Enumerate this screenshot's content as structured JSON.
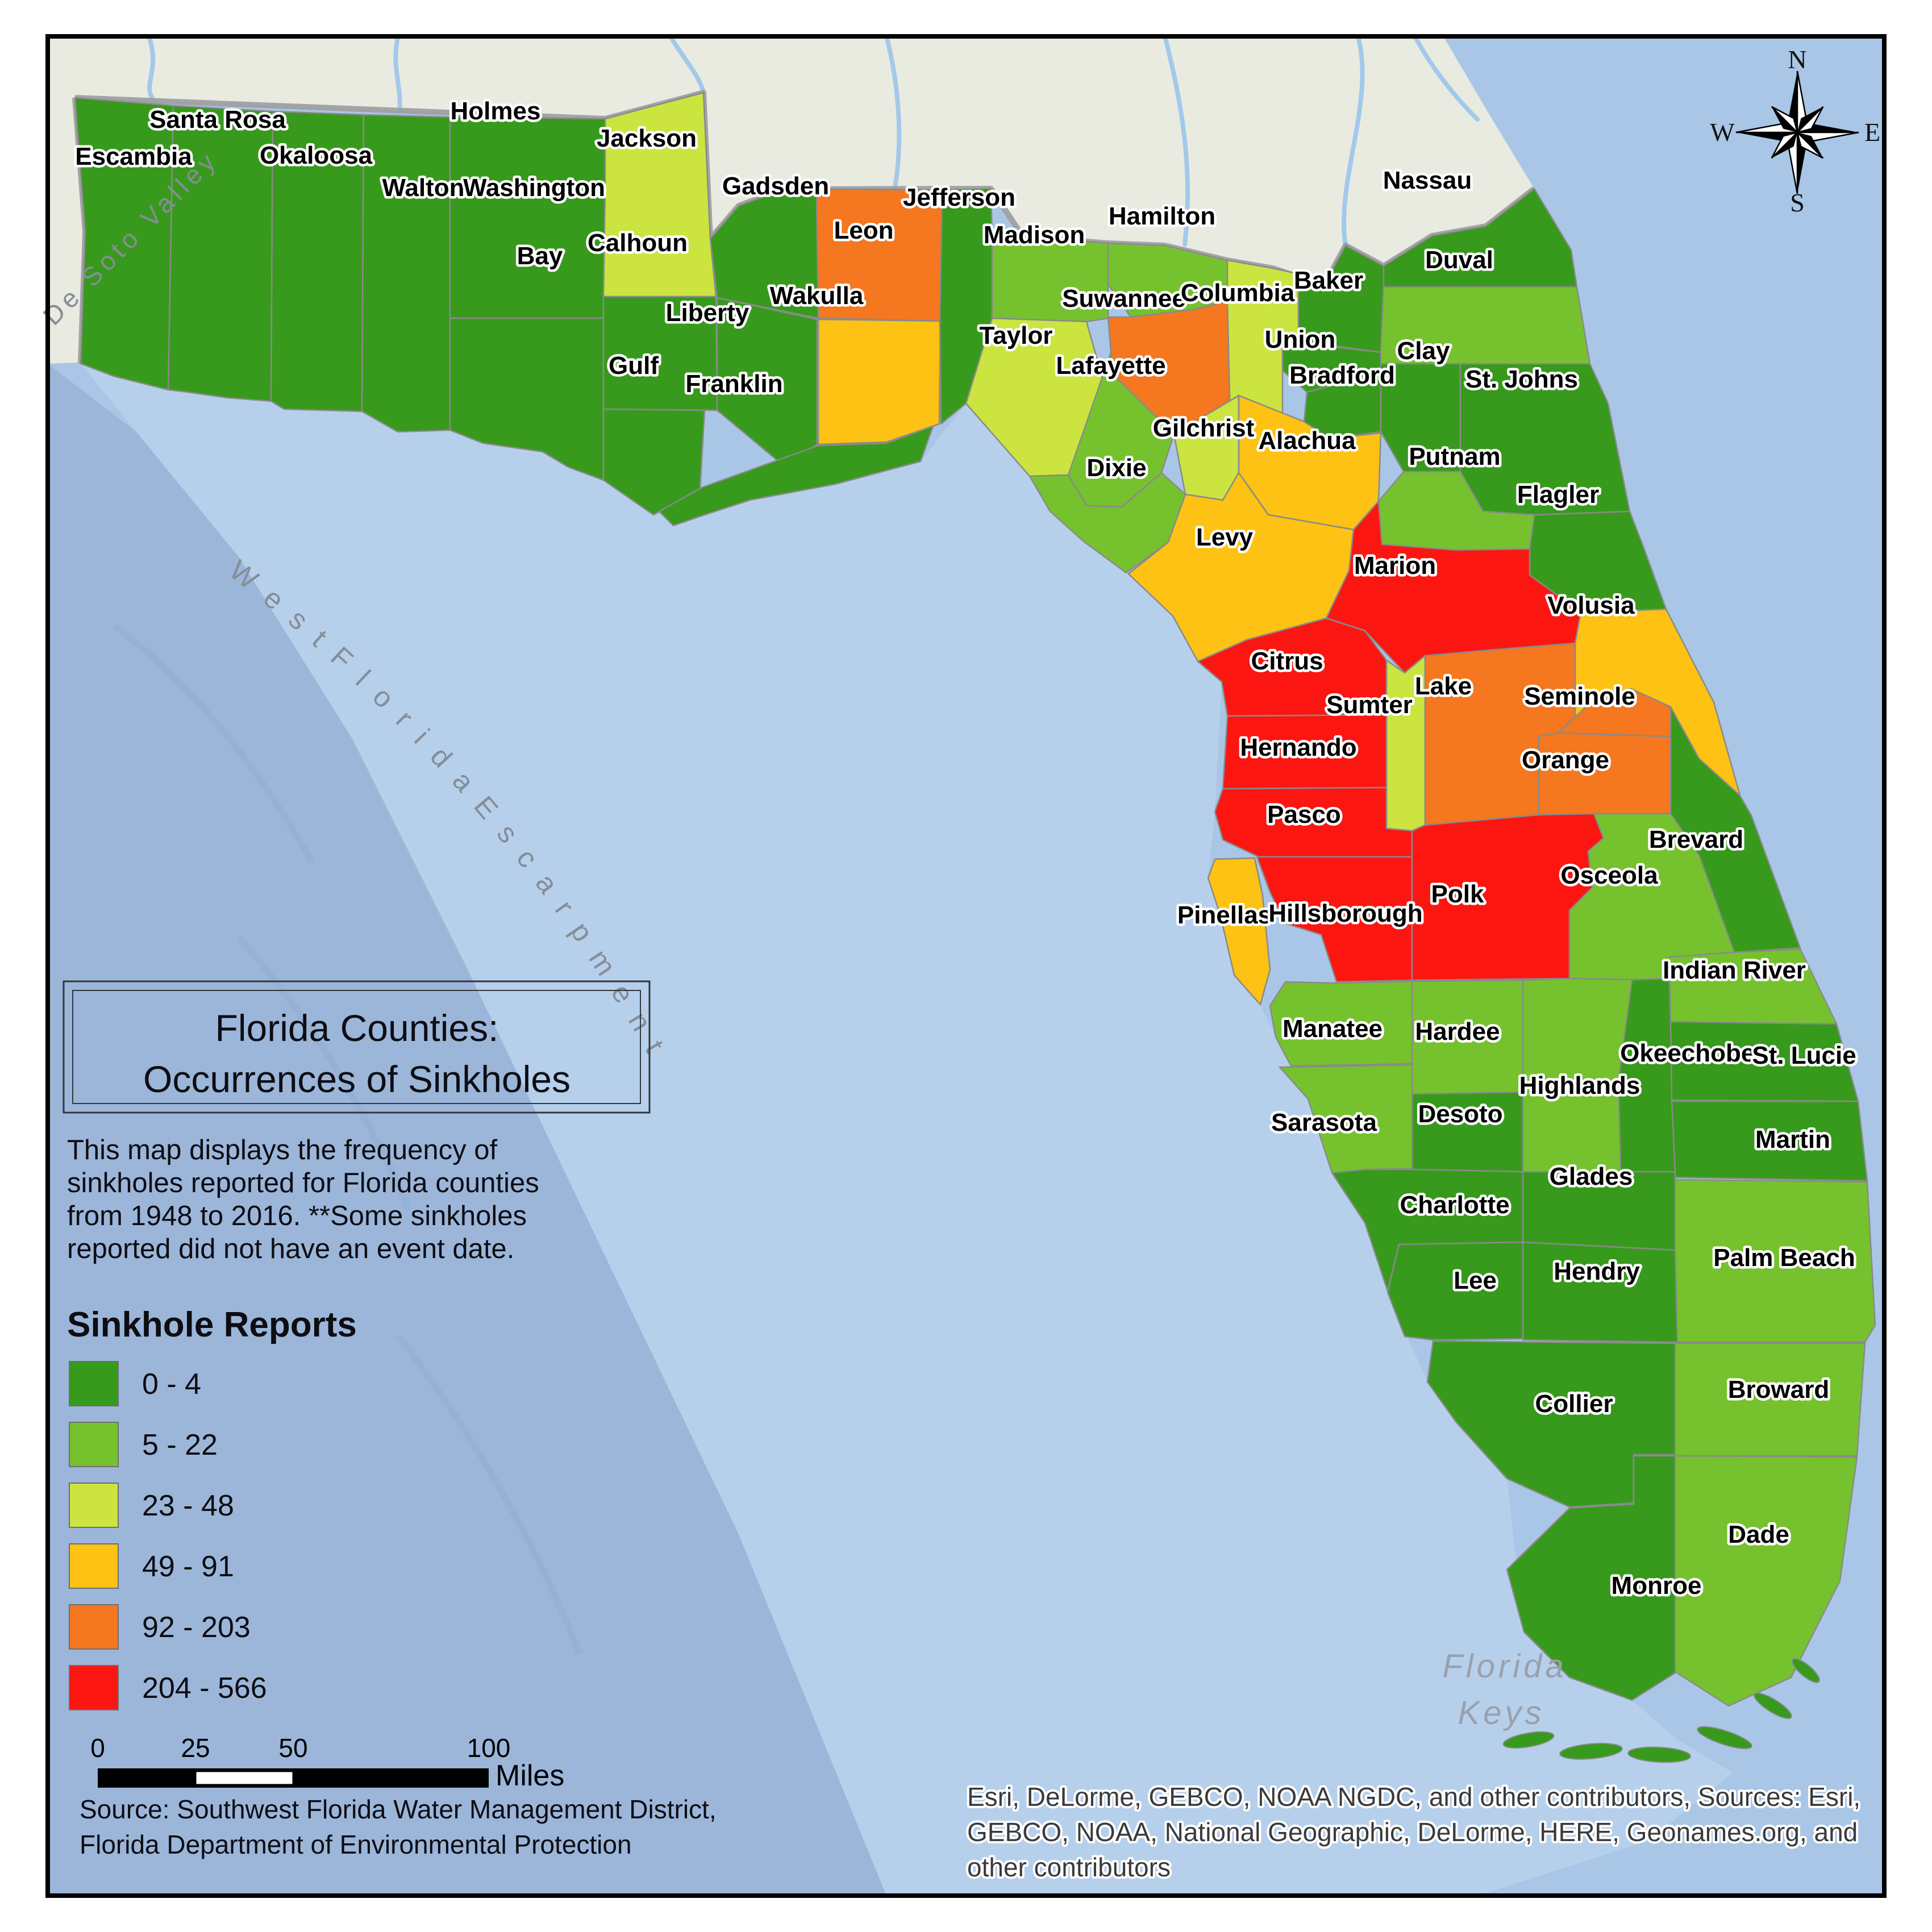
{
  "map": {
    "title_line1": "Florida Counties:",
    "title_line2": "Occurrences of Sinkholes",
    "description_lines": [
      "This map displays the frequency of",
      "sinkholes reported for Florida counties",
      "from 1948 to 2016. **Some sinkholes",
      "reported did not have an event date."
    ],
    "legend_title": "Sinkhole Reports",
    "legend": {
      "classes": [
        {
          "label": "0 - 4",
          "min": 0,
          "max": 4,
          "color": "#379A1C"
        },
        {
          "label": "5 - 22",
          "min": 5,
          "max": 22,
          "color": "#76C22E"
        },
        {
          "label": "23 - 48",
          "min": 23,
          "max": 48,
          "color": "#CBE440"
        },
        {
          "label": "49 - 91",
          "min": 49,
          "max": 91,
          "color": "#FDC213"
        },
        {
          "label": "92 - 203",
          "min": 92,
          "max": 203,
          "color": "#F5771F"
        },
        {
          "label": "204 - 566",
          "min": 204,
          "max": 566,
          "color": "#FB1612"
        }
      ]
    },
    "scale_bar": {
      "ticks": [
        "0",
        "25",
        "50",
        "100"
      ],
      "unit": "Miles"
    },
    "source_lines": [
      "Source: Southwest Florida Water Management District,",
      "Florida Department of Environmental Protection"
    ],
    "attribution_lines": [
      "Esri, DeLorme, GEBCO, NOAA NGDC, and other contributors, Sources: Esri,",
      "GEBCO, NOAA, National Geographic, DeLorme, HERE, Geonames.org, and",
      "other contributors"
    ],
    "compass_points": [
      "N",
      "E",
      "S",
      "W"
    ],
    "ocean_labels": {
      "valley": "De Soto Valley",
      "escarpment": "W e s t   F l o r i d a   E s c a r p m e n t",
      "keys_line1": "Florida",
      "keys_line2": "Keys"
    },
    "colors": {
      "ocean": "#A9C6E6",
      "ocean_deep": "#9CB6DA",
      "ocean_shelf": "#B8D1EC",
      "land_neighbor": "#E9EBE0",
      "state_border": "#9EA0A2",
      "county_border": "#8a8a8a"
    },
    "counties": [
      {
        "name": "Escambia",
        "class_index": 0,
        "label": [
          235,
          290
        ],
        "poly": "132,172 305,186 296,686 200,662 142,640 150,408"
      },
      {
        "name": "Santa Rosa",
        "class_index": 0,
        "label": [
          383,
          225
        ],
        "poly": "305,186 480,196 477,706 400,700 330,690 296,686"
      },
      {
        "name": "Okaloosa",
        "class_index": 0,
        "label": [
          556,
          288
        ],
        "poly": "480,196 640,202 637,724 500,720 477,706"
      },
      {
        "name": "Walton",
        "class_index": 0,
        "label": [
          745,
          345
        ],
        "poly": "640,202 792,206 792,757 700,760 637,724"
      },
      {
        "name": "Holmes",
        "class_index": 0,
        "label": [
          872,
          210
        ],
        "poly": "792,206 1065,209 1065,336 792,336"
      },
      {
        "name": "Washington",
        "class_index": 0,
        "label": [
          940,
          345
        ],
        "poly": "792,336 1065,336 1062,560 792,560"
      },
      {
        "name": "Bay",
        "class_index": 0,
        "label": [
          950,
          465
        ],
        "poly": "792,560 1062,560 1062,845 1000,822 955,795 850,780 792,757"
      },
      {
        "name": "Jackson",
        "class_index": 2,
        "label": [
          1138,
          258
        ],
        "poly": "1065,209 1238,163 1250,420 1260,522 1062,522 1065,336"
      },
      {
        "name": "Calhoun",
        "class_index": 0,
        "label": [
          1122,
          442
        ],
        "poly": "1062,522 1260,522 1262,722 1062,720"
      },
      {
        "name": "Gulf",
        "class_index": 0,
        "label": [
          1115,
          658
        ],
        "poly": "1062,720 1240,722 1232,860 1150,906 1062,845"
      },
      {
        "name": "Gadsden",
        "class_index": 0,
        "label": [
          1365,
          342
        ],
        "poly": "1250,420 1300,362 1380,333 1437,333 1440,560 1262,524"
      },
      {
        "name": "Liberty",
        "class_index": 0,
        "label": [
          1245,
          565
        ],
        "poly": "1262,524 1438,562 1438,782 1382,822 1262,722"
      },
      {
        "name": "Franklin",
        "class_index": 0,
        "label": [
          1292,
          690
        ],
        "poly": "1160,900 1235,858 1440,784 1560,780 1642,750 1620,812 1470,852 1320,880 1240,906 1185,925"
      },
      {
        "name": "Leon",
        "class_index": 4,
        "label": [
          1520,
          420
        ],
        "poly": "1437,333 1658,334 1655,565 1440,560"
      },
      {
        "name": "Wakulla",
        "class_index": 3,
        "label": [
          1437,
          535
        ],
        "poly": "1440,562 1655,565 1653,746 1560,778 1440,782"
      },
      {
        "name": "Jefferson",
        "class_index": 0,
        "label": [
          1688,
          362
        ],
        "poly": "1658,334 1744,332 1746,420 1746,560 1700,710 1656,746 1654,565"
      },
      {
        "name": "Madison",
        "class_index": 1,
        "label": [
          1820,
          428
        ],
        "poly": "1746,420 1800,416 1950,428 1950,560 1912,566 1746,560"
      },
      {
        "name": "Taylor",
        "class_index": 2,
        "label": [
          1788,
          605
        ],
        "poly": "1746,560 1912,566 1950,700 1880,836 1812,838 1700,710"
      },
      {
        "name": "Hamilton",
        "class_index": 1,
        "label": [
          2045,
          395
        ],
        "poly": "1950,428 2050,432 2160,458 2160,530 2100,545 1990,558 1950,500"
      },
      {
        "name": "Suwannee",
        "class_index": 4,
        "label": [
          1978,
          540
        ],
        "poly": "1950,558 1990,558 2100,545 2160,530 2165,735 2066,764 1962,662 1955,620"
      },
      {
        "name": "Lafayette",
        "class_index": 1,
        "label": [
          1955,
          658
        ],
        "poly": "1880,836 1955,620 1962,662 2066,764 2044,832 1974,892 1912,890"
      },
      {
        "name": "Columbia",
        "class_index": 2,
        "label": [
          2178,
          530
        ],
        "poly": "2160,458 2240,472 2285,482 2285,600 2257,600 2257,735 2165,735 2160,530"
      },
      {
        "name": "Baker",
        "class_index": 0,
        "label": [
          2338,
          508
        ],
        "poly": "2285,482 2330,502 2368,432 2435,468 2435,505 2430,620 2285,600"
      },
      {
        "name": "Nassau",
        "class_index": 0,
        "label": [
          2512,
          332
        ],
        "poly": "2700,332 2765,440 2775,505 2435,505 2435,468 2520,415 2615,398"
      },
      {
        "name": "Duval",
        "class_index": 1,
        "label": [
          2568,
          472
        ],
        "poly": "2435,505 2775,505 2798,640 2430,640 2430,620"
      },
      {
        "name": "Union",
        "class_index": 0,
        "label": [
          2288,
          612
        ],
        "poly": "2257,600 2430,620 2430,656 2300,690 2257,652"
      },
      {
        "name": "Bradford",
        "class_index": 0,
        "label": [
          2362,
          675
        ],
        "poly": "2300,690 2430,656 2430,760 2340,772 2295,742"
      },
      {
        "name": "Clay",
        "class_index": 0,
        "label": [
          2505,
          632
        ],
        "poly": "2430,640 2570,640 2570,830 2470,830 2430,760"
      },
      {
        "name": "St. Johns",
        "class_index": 0,
        "label": [
          2678,
          682
        ],
        "poly": "2570,640 2798,640 2830,710 2868,900 2700,906 2610,900 2570,830"
      },
      {
        "name": "Gilchrist",
        "class_index": 2,
        "label": [
          2118,
          768
        ],
        "poly": "2066,764 2180,696 2180,832 2152,880 2086,870"
      },
      {
        "name": "Dixie",
        "class_index": 1,
        "label": [
          1965,
          838
        ],
        "poly": "1812,838 1880,836 1912,890 1974,892 2044,832 2086,870 2056,954 1982,1008 1906,952 1848,900"
      },
      {
        "name": "Alachua",
        "class_index": 3,
        "label": [
          2300,
          790
        ],
        "poly": "2180,696 2295,742 2340,772 2430,762 2426,882 2382,932 2232,906 2180,832"
      },
      {
        "name": "Putnam",
        "class_index": 1,
        "label": [
          2560,
          818
        ],
        "poly": "2470,830 2570,830 2610,900 2700,906 2692,966 2562,968 2432,958 2426,882"
      },
      {
        "name": "Flagler",
        "class_index": 0,
        "label": [
          2742,
          885
        ],
        "poly": "2700,906 2868,900 2892,962 2932,1072 2782,1078 2692,1012 2692,966"
      },
      {
        "name": "Levy",
        "class_index": 3,
        "label": [
          2155,
          960
        ],
        "poly": "2086,870 2152,880 2180,832 2232,906 2382,932 2374,1004 2334,1088 2194,1126 2108,1164 2064,1084 1986,1010 2056,954"
      },
      {
        "name": "Marion",
        "class_index": 5,
        "label": [
          2455,
          1010
        ],
        "poly": "2382,932 2426,882 2432,958 2562,968 2692,966 2692,1012 2782,1078 2772,1132 2622,1144 2508,1154 2472,1184 2402,1110 2334,1088 2374,1004"
      },
      {
        "name": "Volusia",
        "class_index": 3,
        "label": [
          2800,
          1080
        ],
        "poly": "2782,1078 2932,1072 3016,1236 3062,1400 2990,1335 2940,1244 2870,1212 2808,1228 2772,1262 2772,1132"
      },
      {
        "name": "Citrus",
        "class_index": 5,
        "label": [
          2265,
          1178
        ],
        "poly": "2194,1126 2334,1088 2402,1110 2440,1162 2440,1258 2160,1260 2150,1200 2108,1164"
      },
      {
        "name": "Sumter",
        "class_index": 2,
        "label": [
          2410,
          1255
        ],
        "poly": "2440,1162 2472,1184 2508,1154 2508,1452 2485,1462 2440,1458"
      },
      {
        "name": "Lake",
        "class_index": 4,
        "label": [
          2540,
          1222
        ],
        "poly": "2508,1154 2622,1144 2772,1132 2772,1262 2742,1290 2708,1296 2708,1434 2508,1452"
      },
      {
        "name": "Seminole",
        "class_index": 4,
        "label": [
          2780,
          1240
        ],
        "poly": "2772,1262 2808,1228 2870,1212 2940,1244 2940,1296 2742,1290"
      },
      {
        "name": "Orange",
        "class_index": 4,
        "label": [
          2755,
          1352
        ],
        "poly": "2708,1296 2742,1290 2940,1296 2940,1432 2805,1432 2708,1434"
      },
      {
        "name": "Hernando",
        "class_index": 5,
        "label": [
          2285,
          1330
        ],
        "poly": "2160,1260 2440,1258 2440,1386 2152,1388"
      },
      {
        "name": "Pasco",
        "class_index": 5,
        "label": [
          2295,
          1448
        ],
        "poly": "2152,1388 2440,1386 2440,1458 2485,1462 2485,1508 2215,1508 2152,1478 2138,1428"
      },
      {
        "name": "Pinellas",
        "class_index": 3,
        "label": [
          2155,
          1625
        ],
        "poly": "2138,1512 2208,1510 2222,1576 2235,1706 2218,1768 2172,1716 2148,1612 2126,1545"
      },
      {
        "name": "Hillsborough",
        "class_index": 5,
        "label": [
          2368,
          1622
        ],
        "poly": "2212,1508 2485,1508 2485,1725 2352,1728 2325,1645 2262,1625 2235,1570"
      },
      {
        "name": "Polk",
        "class_index": 5,
        "label": [
          2565,
          1588
        ],
        "poly": "2485,1462 2508,1452 2708,1434 2805,1432 2822,1475 2795,1498 2802,1562 2762,1602 2762,1722 2485,1725 2485,1508"
      },
      {
        "name": "Osceola",
        "class_index": 1,
        "label": [
          2832,
          1555
        ],
        "poly": "2805,1432 2940,1432 2990,1505 3052,1676 2938,1684 2938,1722 2872,1724 2762,1722 2762,1602 2802,1562 2795,1498 2822,1475"
      },
      {
        "name": "Brevard",
        "class_index": 0,
        "label": [
          2985,
          1492
        ],
        "poly": "2940,1244 2990,1335 3062,1400 3082,1435 3168,1668 3052,1676 2990,1505 2940,1432 2940,1296"
      },
      {
        "name": "Indian River",
        "class_index": 1,
        "label": [
          3052,
          1722
        ],
        "poly": "2938,1684 3052,1676 3168,1670 3232,1802 2940,1798"
      },
      {
        "name": "Okeechobee",
        "class_index": 0,
        "label": [
          2982,
          1868
        ],
        "poly": "2872,1724 2938,1722 2940,1798 2948,2062 2852,2062 2848,1902"
      },
      {
        "name": "St. Lucie",
        "class_index": 0,
        "label": [
          3175,
          1872
        ],
        "poly": "2940,1798 3232,1802 3270,1938 2942,1936"
      },
      {
        "name": "Martin",
        "class_index": 0,
        "label": [
          3155,
          2020
        ],
        "poly": "2942,1938 3270,1938 3286,2078 2948,2072 2948,2062"
      },
      {
        "name": "Highlands",
        "class_index": 1,
        "label": [
          2780,
          1925
        ],
        "poly": "2680,1725 2762,1722 2872,1724 2848,1902 2852,2062 2680,2062"
      },
      {
        "name": "Hardee",
        "class_index": 1,
        "label": [
          2565,
          1830
        ],
        "poly": "2485,1727 2680,1725 2680,1922 2485,1925"
      },
      {
        "name": "Manatee",
        "class_index": 1,
        "label": [
          2345,
          1825
        ],
        "poly": "2235,1770 2262,1728 2352,1730 2485,1727 2485,1872 2272,1876 2245,1825"
      },
      {
        "name": "Sarasota",
        "class_index": 1,
        "label": [
          2330,
          1990
        ],
        "poly": "2252,1878 2485,1874 2485,2056 2402,2058 2344,2064 2302,1934"
      },
      {
        "name": "Desoto",
        "class_index": 0,
        "label": [
          2570,
          1975
        ],
        "poly": "2485,1925 2680,1922 2680,2062 2485,2058"
      },
      {
        "name": "Charlotte",
        "class_index": 0,
        "label": [
          2560,
          2135
        ],
        "poly": "2344,2064 2402,2058 2485,2058 2680,2062 2680,2186 2462,2190 2442,2272 2402,2152"
      },
      {
        "name": "Glades",
        "class_index": 0,
        "label": [
          2800,
          2085
        ],
        "poly": "2680,2062 2948,2062 2948,2200 2680,2186"
      },
      {
        "name": "Palm Beach",
        "class_index": 1,
        "label": [
          3140,
          2228
        ],
        "poly": "2948,2076 3286,2080 3300,2332 3282,2362 2952,2362 2948,2200"
      },
      {
        "name": "Lee",
        "class_index": 0,
        "label": [
          2596,
          2268
        ],
        "poly": "2462,2190 2680,2186 2680,2356 2522,2358 2472,2352 2442,2274"
      },
      {
        "name": "Hendry",
        "class_index": 0,
        "label": [
          2810,
          2252
        ],
        "poly": "2680,2186 2948,2200 2952,2362 2680,2358"
      },
      {
        "name": "Broward",
        "class_index": 1,
        "label": [
          3130,
          2460
        ],
        "poly": "2948,2364 3282,2364 3268,2562 2948,2562"
      },
      {
        "name": "Collier",
        "class_index": 0,
        "label": [
          2770,
          2485
        ],
        "poly": "2522,2360 2948,2364 2948,2560 2875,2560 2875,2645 2762,2652 2652,2602 2562,2502 2512,2432"
      },
      {
        "name": "Dade",
        "class_index": 1,
        "label": [
          3095,
          2715
        ],
        "poly": "2948,2562 3268,2564 3238,2782 3152,2952 3042,3002 2948,2942"
      },
      {
        "name": "Monroe",
        "class_index": 0,
        "label": [
          2915,
          2805
        ],
        "poly": "2762,2654 2875,2647 2875,2562 2948,2562 2948,2944 2872,2992 2762,2952 2682,2872 2652,2762"
      }
    ]
  }
}
